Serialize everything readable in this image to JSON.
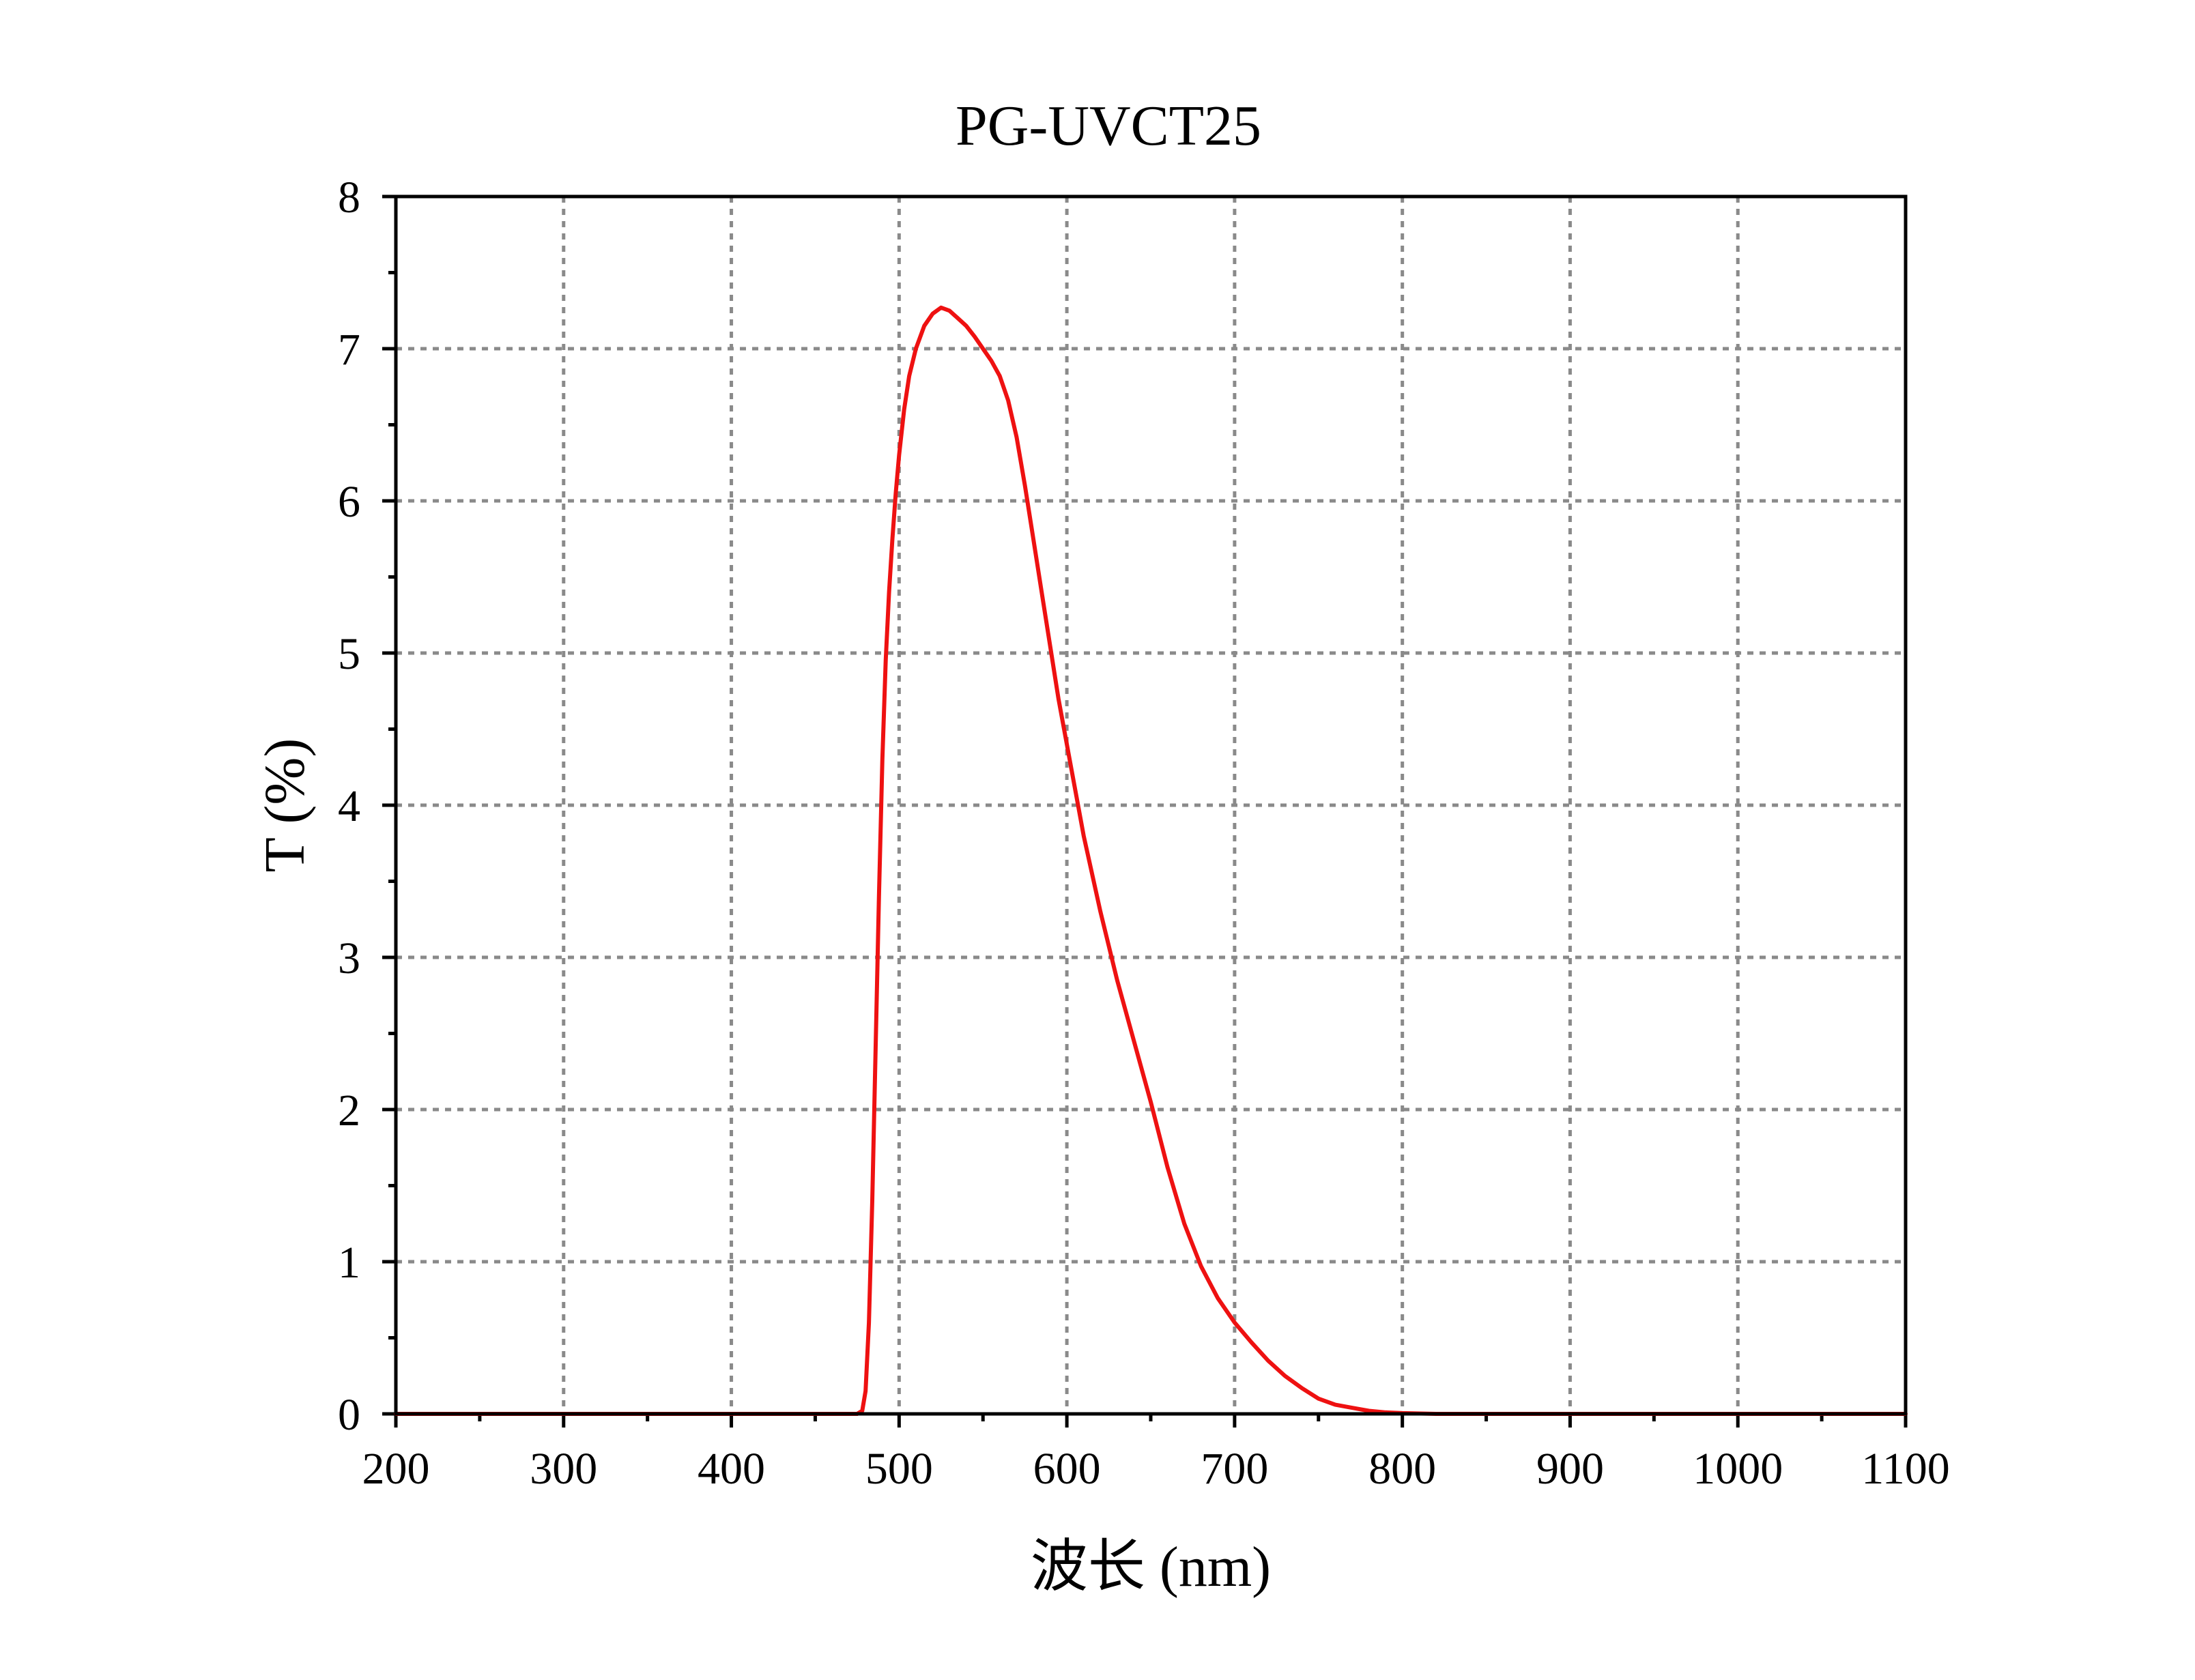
{
  "chart_data": {
    "type": "line",
    "title": "PG-UVCT25",
    "xlabel": "波长 (nm)",
    "ylabel": "T (%)",
    "xlim": [
      200,
      1100
    ],
    "ylim": [
      0,
      8
    ],
    "grid": true,
    "x_ticks": [
      200,
      300,
      400,
      500,
      600,
      700,
      800,
      900,
      1000,
      1100
    ],
    "x_tick_labels": [
      "200",
      "300",
      "400",
      "500",
      "600",
      "700",
      "800",
      "900",
      "1000",
      "1100"
    ],
    "y_ticks": [
      0,
      1,
      2,
      3,
      4,
      5,
      6,
      7,
      8
    ],
    "y_tick_labels": [
      "0",
      "1",
      "2",
      "3",
      "4",
      "5",
      "6",
      "7",
      "8"
    ],
    "series": [
      {
        "name": "PG-UVCT25",
        "color": "#ee1111",
        "x": [
          200,
          300,
          400,
          450,
          475,
          478,
          480,
          482,
          484,
          486,
          488,
          490,
          492,
          494,
          496,
          498,
          500,
          503,
          506,
          510,
          515,
          520,
          525,
          530,
          535,
          540,
          545,
          550,
          555,
          560,
          565,
          570,
          575,
          580,
          585,
          590,
          595,
          600,
          610,
          620,
          630,
          640,
          650,
          660,
          670,
          680,
          690,
          700,
          710,
          720,
          730,
          740,
          750,
          760,
          770,
          780,
          790,
          800,
          820,
          840,
          860,
          900,
          1000,
          1100
        ],
        "y": [
          0,
          0,
          0,
          0,
          0,
          0.02,
          0.15,
          0.6,
          1.4,
          2.4,
          3.4,
          4.3,
          4.95,
          5.4,
          5.75,
          6.05,
          6.3,
          6.6,
          6.82,
          7.0,
          7.15,
          7.23,
          7.27,
          7.25,
          7.2,
          7.15,
          7.08,
          7.0,
          6.92,
          6.82,
          6.66,
          6.42,
          6.1,
          5.75,
          5.4,
          5.05,
          4.7,
          4.4,
          3.8,
          3.3,
          2.85,
          2.45,
          2.05,
          1.62,
          1.25,
          0.97,
          0.76,
          0.6,
          0.47,
          0.35,
          0.25,
          0.17,
          0.1,
          0.06,
          0.04,
          0.02,
          0.01,
          0.005,
          0,
          0,
          0,
          0,
          0,
          0
        ]
      }
    ]
  }
}
